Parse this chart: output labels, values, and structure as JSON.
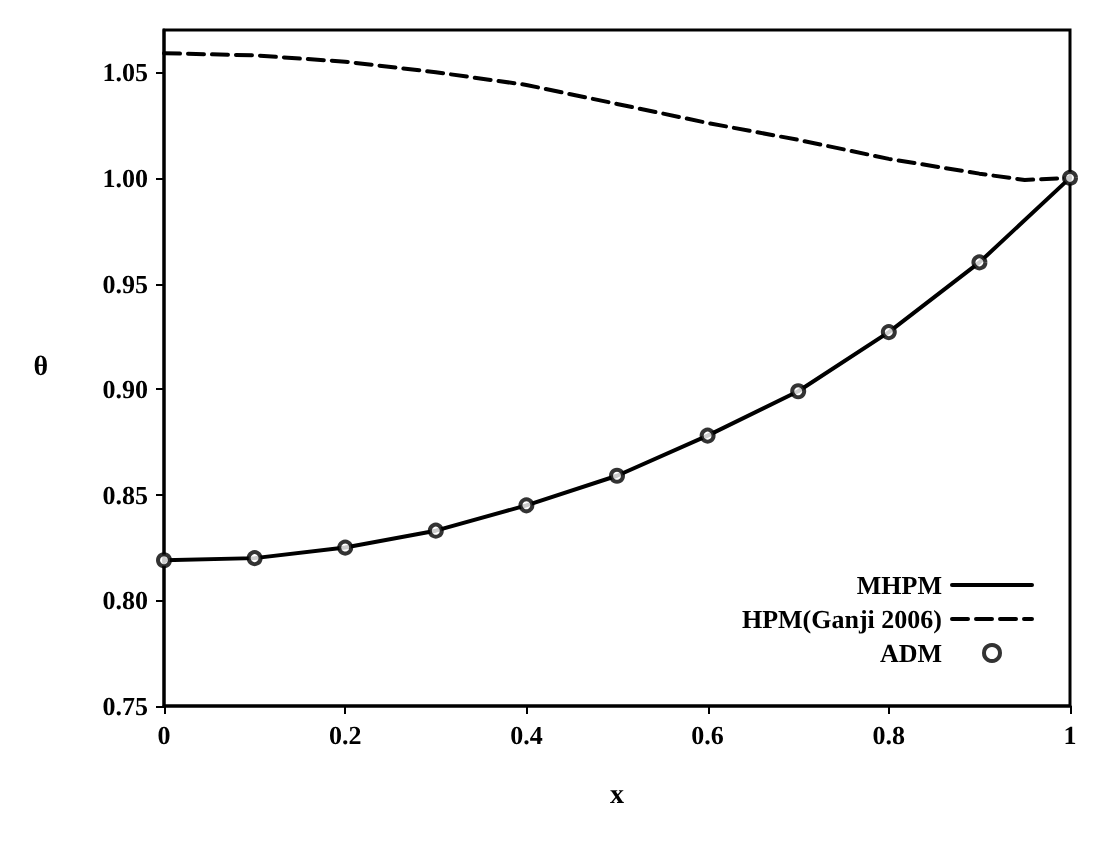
{
  "chart_data": {
    "type": "line",
    "xlabel": "x",
    "ylabel": "θ",
    "xlim": [
      0,
      1
    ],
    "ylim": [
      0.75,
      1.07
    ],
    "xticks": [
      0,
      0.2,
      0.4,
      0.6,
      0.8,
      1
    ],
    "yticks": [
      {
        "value": 0.75,
        "label": "0.75"
      },
      {
        "value": 0.8,
        "label": "0.80"
      },
      {
        "value": 0.85,
        "label": "0.85"
      },
      {
        "value": 0.9,
        "label": "0.90"
      },
      {
        "value": 0.95,
        "label": "0.95"
      },
      {
        "value": 1.0,
        "label": "1.00"
      },
      {
        "value": 1.05,
        "label": "1.05"
      }
    ],
    "grid": false,
    "legend": "bottom right",
    "x": [
      0,
      0.1,
      0.2,
      0.3,
      0.4,
      0.5,
      0.6,
      0.7,
      0.8,
      0.9,
      1
    ],
    "series": [
      {
        "name": "MHPM",
        "color": "#000000",
        "line_style": "solid",
        "marker": "none",
        "values": [
          0.819,
          0.82,
          0.825,
          0.833,
          0.845,
          0.859,
          0.878,
          0.899,
          0.927,
          0.96,
          1.0
        ]
      },
      {
        "name": "HPM(Ganji 2006)",
        "color": "#000000",
        "line_style": "dashed",
        "marker": "none",
        "x": [
          0,
          0.1,
          0.2,
          0.3,
          0.4,
          0.5,
          0.6,
          0.7,
          0.8,
          0.9,
          0.95,
          1
        ],
        "values": [
          1.059,
          1.058,
          1.055,
          1.05,
          1.044,
          1.035,
          1.026,
          1.018,
          1.009,
          1.002,
          0.999,
          1.0
        ]
      },
      {
        "name": "ADM",
        "type": "scatter",
        "color": "#000000",
        "marker": "circle",
        "values": [
          0.819,
          0.82,
          0.825,
          0.833,
          0.845,
          0.859,
          0.878,
          0.899,
          0.927,
          0.96,
          1.0
        ]
      }
    ]
  }
}
